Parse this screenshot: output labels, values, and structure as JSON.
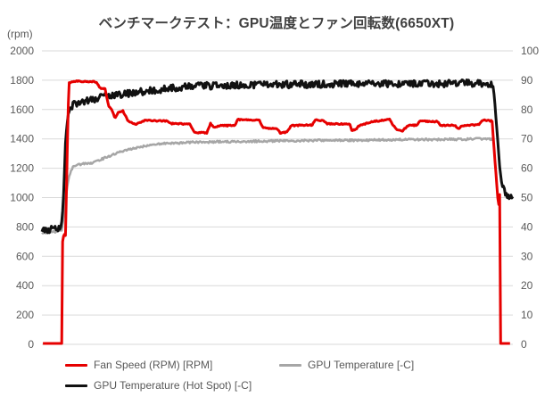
{
  "chart_data": {
    "type": "line",
    "title": "ベンチマークテスト：GPU温度とファン回転数(6650XT)",
    "title_color": "#404040",
    "background": "#ffffff",
    "grid_on": true,
    "grid_color": "#d9d9d9",
    "tick_label_color": "#595959",
    "x_axis_labels": "none",
    "y_left": {
      "label": "(rpm)",
      "min": 0,
      "max": 2000,
      "ticks": [
        2000,
        1800,
        1600,
        1400,
        1200,
        1000,
        800,
        600,
        400,
        200,
        0
      ]
    },
    "y_right": {
      "min": 0,
      "max": 100,
      "ticks": [
        100,
        90,
        80,
        70,
        60,
        50,
        40,
        30,
        20,
        10,
        0
      ]
    },
    "legend_position": "bottom",
    "legend_order": [
      2,
      0,
      1
    ],
    "series": [
      {
        "name": "GPU Temperature [-C]",
        "color": "#a6a6a6",
        "axis": "right",
        "width": 2.5,
        "noise": 0.35,
        "points": [
          [
            0,
            38
          ],
          [
            1.5,
            38.2
          ],
          [
            3.0,
            38.4
          ],
          [
            4.2,
            39
          ],
          [
            4.8,
            46
          ],
          [
            5.3,
            53
          ],
          [
            5.9,
            58
          ],
          [
            6.6,
            60.5
          ],
          [
            7.5,
            61.2
          ],
          [
            9,
            61.5
          ],
          [
            10.5,
            61.8
          ],
          [
            12,
            62.6
          ],
          [
            14,
            64.0
          ],
          [
            16,
            65.2
          ],
          [
            18,
            66.2
          ],
          [
            20,
            66.9
          ],
          [
            22.5,
            67.7
          ],
          [
            25.5,
            68.4
          ],
          [
            28,
            68.6
          ],
          [
            31,
            68.8
          ],
          [
            34,
            68.9
          ],
          [
            38,
            69.0
          ],
          [
            42,
            69.1
          ],
          [
            46,
            69.2
          ],
          [
            50,
            69.3
          ],
          [
            55,
            69.4
          ],
          [
            60,
            69.5
          ],
          [
            65,
            69.5
          ],
          [
            70,
            69.6
          ],
          [
            75,
            69.7
          ],
          [
            80,
            69.8
          ],
          [
            85,
            69.8
          ],
          [
            90,
            69.9
          ],
          [
            93,
            70.0
          ],
          [
            95.8,
            69.8
          ]
        ]
      },
      {
        "name": "GPU Temperature (Hot Spot) [-C]",
        "color": "#111111",
        "axis": "right",
        "width": 3,
        "noise": 1.2,
        "points": [
          [
            0,
            39
          ],
          [
            1.5,
            39.2
          ],
          [
            3.0,
            39.3
          ],
          [
            3.8,
            40.2
          ],
          [
            4.1,
            41.5
          ],
          [
            4.3,
            42
          ],
          [
            4.6,
            52
          ],
          [
            5.0,
            68
          ],
          [
            5.4,
            76
          ],
          [
            5.9,
            80
          ],
          [
            6.5,
            81.5
          ],
          [
            7.5,
            82
          ],
          [
            9,
            82.6
          ],
          [
            11,
            83.4
          ],
          [
            13,
            84.2
          ],
          [
            15,
            84.8
          ],
          [
            17,
            85.2
          ],
          [
            19,
            85.6
          ],
          [
            21,
            86.0
          ],
          [
            23,
            86.4
          ],
          [
            25,
            86.8
          ],
          [
            28,
            87.4
          ],
          [
            31,
            87.8
          ],
          [
            34,
            88.0
          ],
          [
            38,
            88.2
          ],
          [
            42,
            88.4
          ],
          [
            46,
            88.5
          ],
          [
            50,
            88.5
          ],
          [
            54,
            88.6
          ],
          [
            58,
            88.6
          ],
          [
            62,
            88.7
          ],
          [
            66,
            88.8
          ],
          [
            70,
            88.9
          ],
          [
            74,
            88.8
          ],
          [
            78,
            88.9
          ],
          [
            82,
            88.8
          ],
          [
            86,
            88.9
          ],
          [
            90,
            89.0
          ],
          [
            93,
            88.9
          ],
          [
            95.8,
            88.5
          ],
          [
            96.4,
            78
          ],
          [
            97.0,
            64
          ],
          [
            97.6,
            55
          ],
          [
            98.4,
            51
          ],
          [
            99.0,
            50.2
          ],
          [
            100,
            50
          ]
        ]
      },
      {
        "name": "Fan Speed (RPM) [RPM]",
        "color": "#e60000",
        "axis": "left",
        "width": 3,
        "noise": 4,
        "points": [
          [
            0.2,
            0
          ],
          [
            4.3,
            0
          ],
          [
            4.4,
            700
          ],
          [
            4.7,
            750
          ],
          [
            5.0,
            745
          ],
          [
            5.3,
            1200
          ],
          [
            5.7,
            1780
          ],
          [
            6.3,
            1790
          ],
          [
            7.5,
            1795
          ],
          [
            9.0,
            1790
          ],
          [
            10.5,
            1792
          ],
          [
            11.6,
            1788
          ],
          [
            12.3,
            1745
          ],
          [
            13.4,
            1740
          ],
          [
            14.2,
            1620
          ],
          [
            14.8,
            1600
          ],
          [
            15.5,
            1540
          ],
          [
            16.3,
            1585
          ],
          [
            17.2,
            1590
          ],
          [
            18.3,
            1520
          ],
          [
            19.9,
            1500
          ],
          [
            21.8,
            1525
          ],
          [
            26.7,
            1522
          ],
          [
            27.2,
            1505
          ],
          [
            31.5,
            1500
          ],
          [
            32.3,
            1445
          ],
          [
            35.0,
            1440
          ],
          [
            35.8,
            1505
          ],
          [
            36.5,
            1480
          ],
          [
            38.0,
            1490
          ],
          [
            41.0,
            1492
          ],
          [
            41.6,
            1532
          ],
          [
            46.2,
            1528
          ],
          [
            46.9,
            1475
          ],
          [
            50.0,
            1468
          ],
          [
            50.6,
            1440
          ],
          [
            52.0,
            1445
          ],
          [
            52.9,
            1490
          ],
          [
            57.4,
            1495
          ],
          [
            58.1,
            1530
          ],
          [
            59.8,
            1523
          ],
          [
            60.6,
            1503
          ],
          [
            65.4,
            1500
          ],
          [
            65.8,
            1458
          ],
          [
            66.6,
            1462
          ],
          [
            67.2,
            1488
          ],
          [
            70.2,
            1518
          ],
          [
            73.8,
            1532
          ],
          [
            75.1,
            1470
          ],
          [
            76.4,
            1450
          ],
          [
            77.7,
            1490
          ],
          [
            79.6,
            1495
          ],
          [
            80.2,
            1520
          ],
          [
            84.0,
            1518
          ],
          [
            84.6,
            1492
          ],
          [
            87.8,
            1492
          ],
          [
            88.4,
            1468
          ],
          [
            89.1,
            1488
          ],
          [
            92.9,
            1498
          ],
          [
            93.5,
            1528
          ],
          [
            95.0,
            1525
          ],
          [
            95.6,
            1520
          ],
          [
            96.2,
            1250
          ],
          [
            96.8,
            1000
          ],
          [
            97.0,
            950
          ],
          [
            97.2,
            1020
          ],
          [
            97.3,
            0
          ],
          [
            99.4,
            0
          ]
        ]
      }
    ]
  }
}
